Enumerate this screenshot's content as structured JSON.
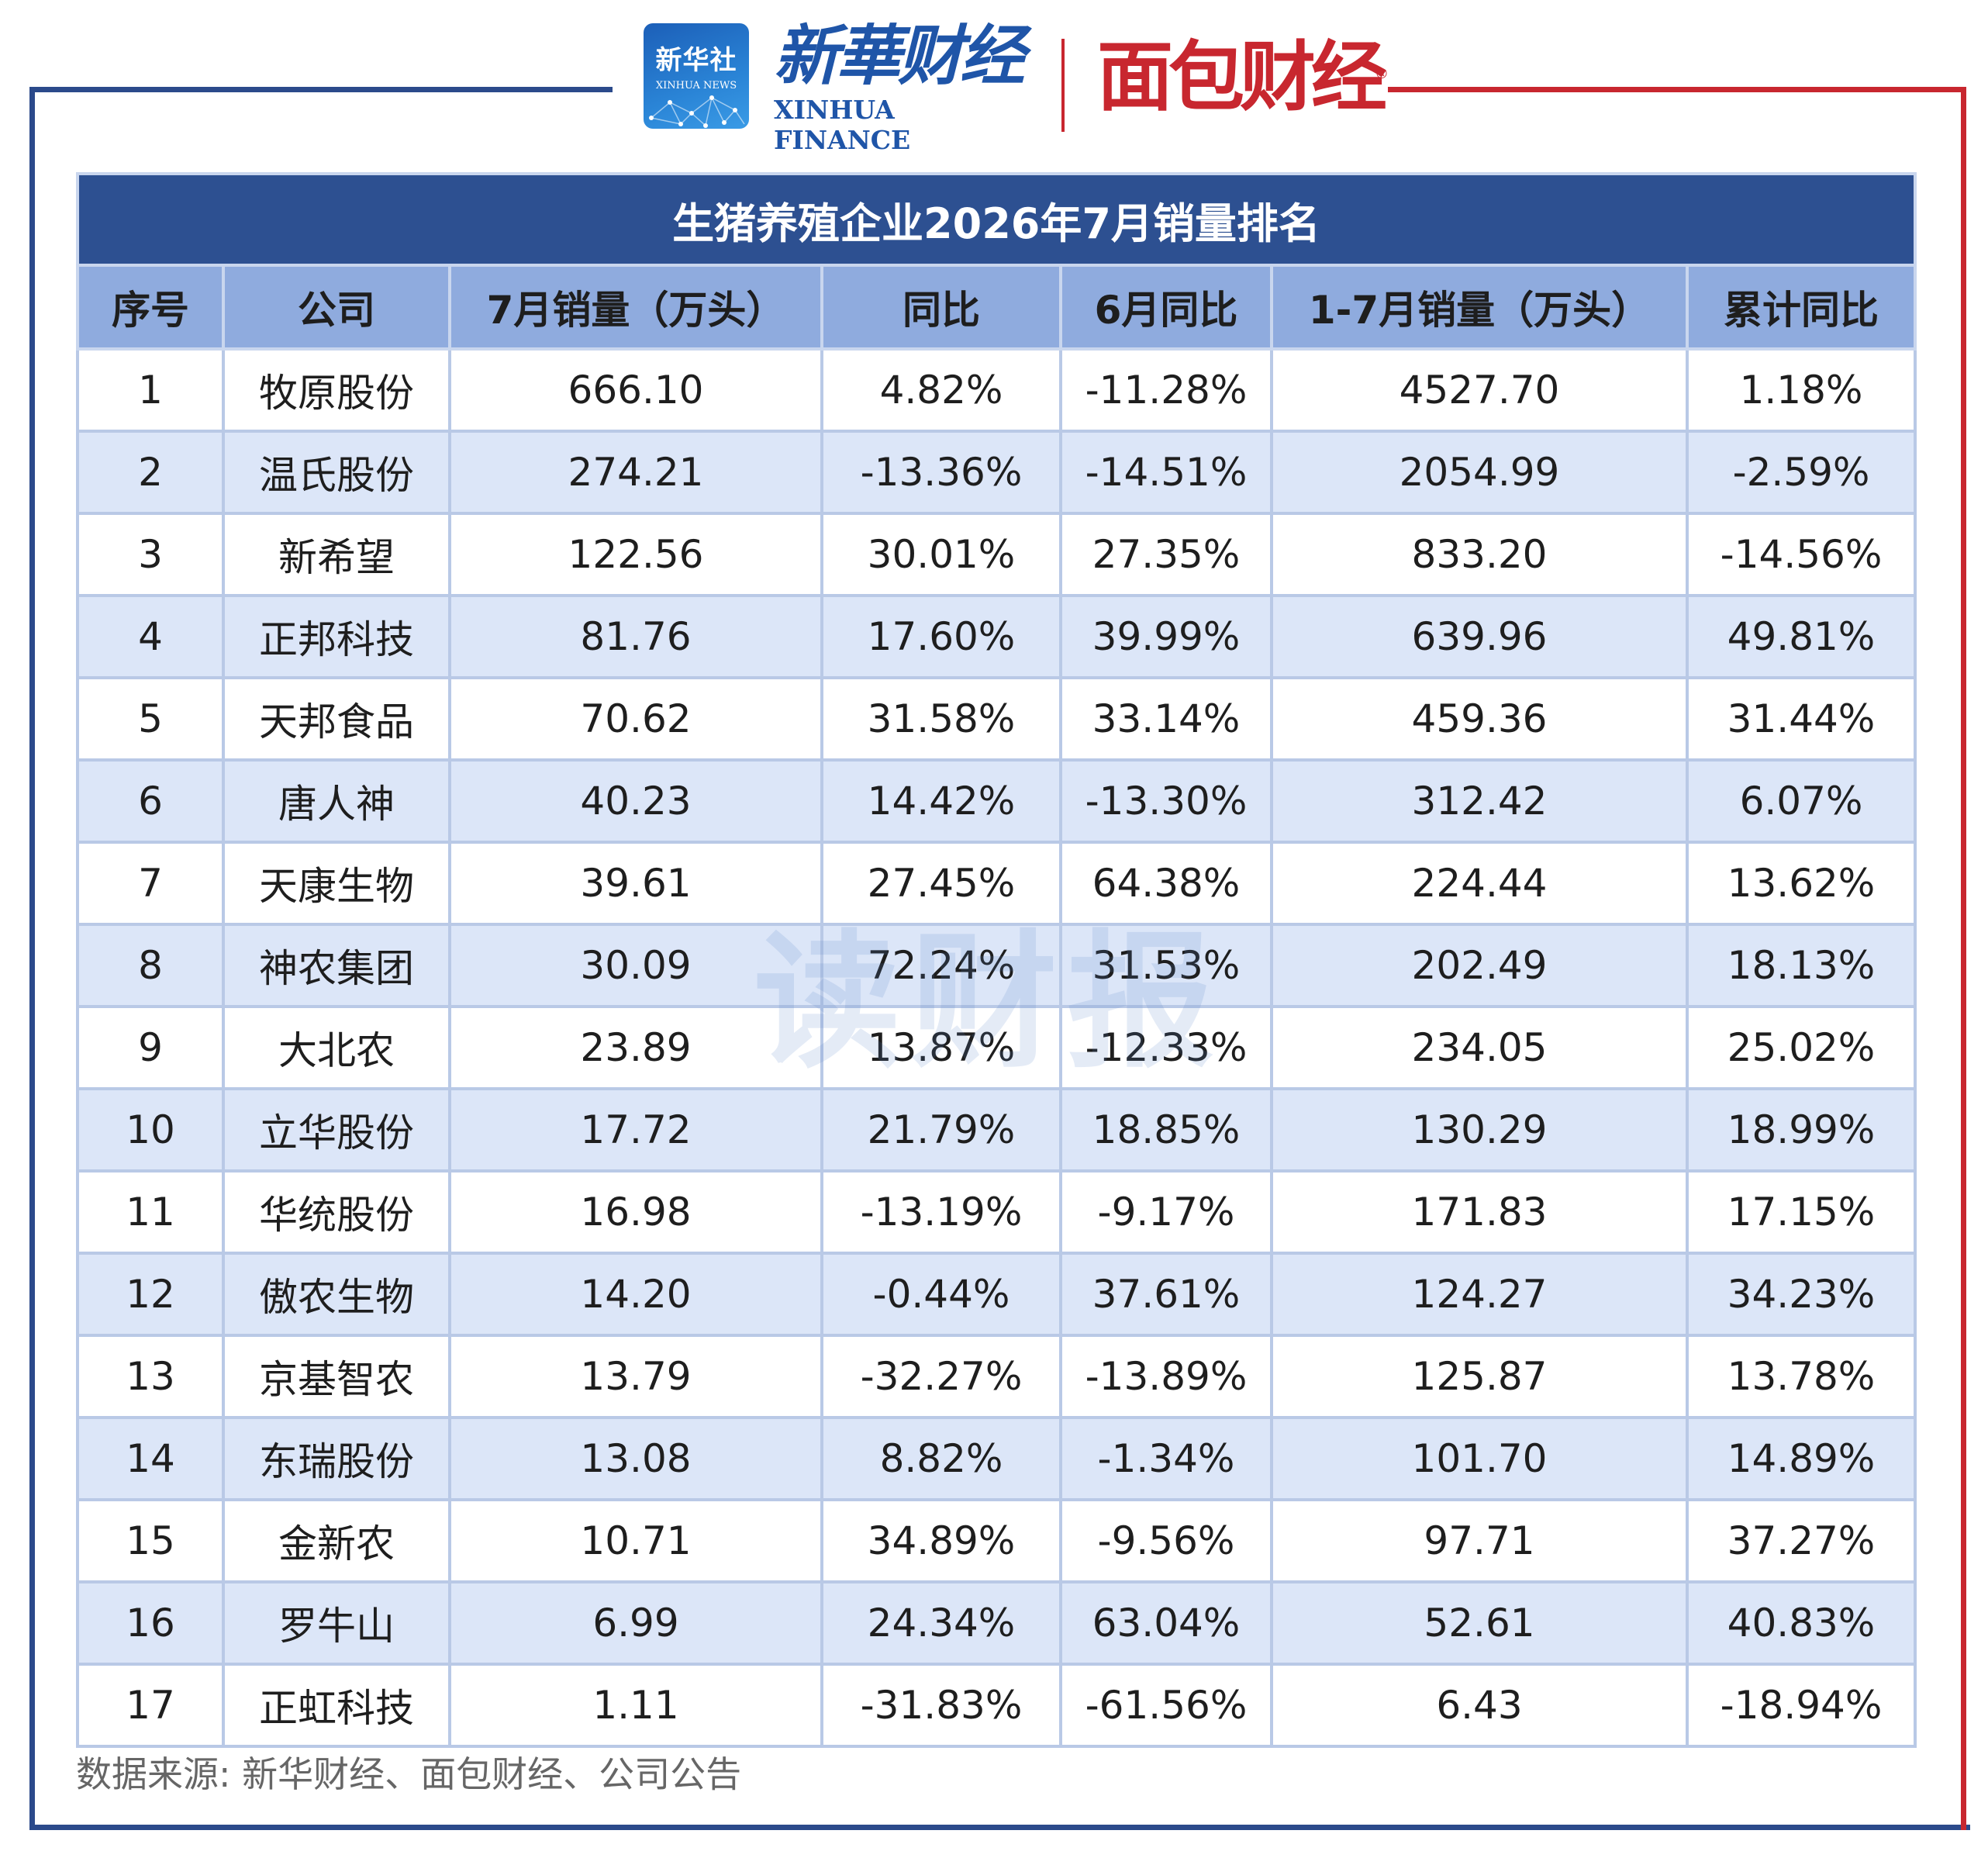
{
  "header": {
    "xinhuashe_logo": {
      "cn": "新华社",
      "en": "XINHUA NEWS"
    },
    "xinhua_finance_logo": {
      "cn": "新華财经",
      "en": "XINHUA FINANCE"
    },
    "mianbao_logo": {
      "cn": "面包财经",
      "reg": "®"
    }
  },
  "table": {
    "title": "生猪养殖企业2026年7月销量排名",
    "columns": [
      "序号",
      "公司",
      "7月销量（万头）",
      "同比",
      "6月同比",
      "1-7月销量（万头）",
      "累计同比"
    ],
    "rows": [
      [
        "1",
        "牧原股份",
        "666.10",
        "4.82%",
        "-11.28%",
        "4527.70",
        "1.18%"
      ],
      [
        "2",
        "温氏股份",
        "274.21",
        "-13.36%",
        "-14.51%",
        "2054.99",
        "-2.59%"
      ],
      [
        "3",
        "新希望",
        "122.56",
        "30.01%",
        "27.35%",
        "833.20",
        "-14.56%"
      ],
      [
        "4",
        "正邦科技",
        "81.76",
        "17.60%",
        "39.99%",
        "639.96",
        "49.81%"
      ],
      [
        "5",
        "天邦食品",
        "70.62",
        "31.58%",
        "33.14%",
        "459.36",
        "31.44%"
      ],
      [
        "6",
        "唐人神",
        "40.23",
        "14.42%",
        "-13.30%",
        "312.42",
        "6.07%"
      ],
      [
        "7",
        "天康生物",
        "39.61",
        "27.45%",
        "64.38%",
        "224.44",
        "13.62%"
      ],
      [
        "8",
        "神农集团",
        "30.09",
        "72.24%",
        "31.53%",
        "202.49",
        "18.13%"
      ],
      [
        "9",
        "大北农",
        "23.89",
        "13.87%",
        "-12.33%",
        "234.05",
        "25.02%"
      ],
      [
        "10",
        "立华股份",
        "17.72",
        "21.79%",
        "18.85%",
        "130.29",
        "18.99%"
      ],
      [
        "11",
        "华统股份",
        "16.98",
        "-13.19%",
        "-9.17%",
        "171.83",
        "17.15%"
      ],
      [
        "12",
        "傲农生物",
        "14.20",
        "-0.44%",
        "37.61%",
        "124.27",
        "34.23%"
      ],
      [
        "13",
        "京基智农",
        "13.79",
        "-32.27%",
        "-13.89%",
        "125.87",
        "13.78%"
      ],
      [
        "14",
        "东瑞股份",
        "13.08",
        "8.82%",
        "-1.34%",
        "101.70",
        "14.89%"
      ],
      [
        "15",
        "金新农",
        "10.71",
        "34.89%",
        "-9.56%",
        "97.71",
        "37.27%"
      ],
      [
        "16",
        "罗牛山",
        "6.99",
        "24.34%",
        "63.04%",
        "52.61",
        "40.83%"
      ],
      [
        "17",
        "正虹科技",
        "1.11",
        "-31.83%",
        "-61.56%",
        "6.43",
        "-18.94%"
      ]
    ]
  },
  "watermark": "读财报",
  "source": "数据来源: 新华财经、面包财经、公司公告",
  "colors": {
    "title_bg": "#2d5091",
    "header_bg": "#8fabde",
    "row_alt_bg": "#dce6f8",
    "frame_blue": "#2b4a8b",
    "frame_red": "#c8272f"
  }
}
